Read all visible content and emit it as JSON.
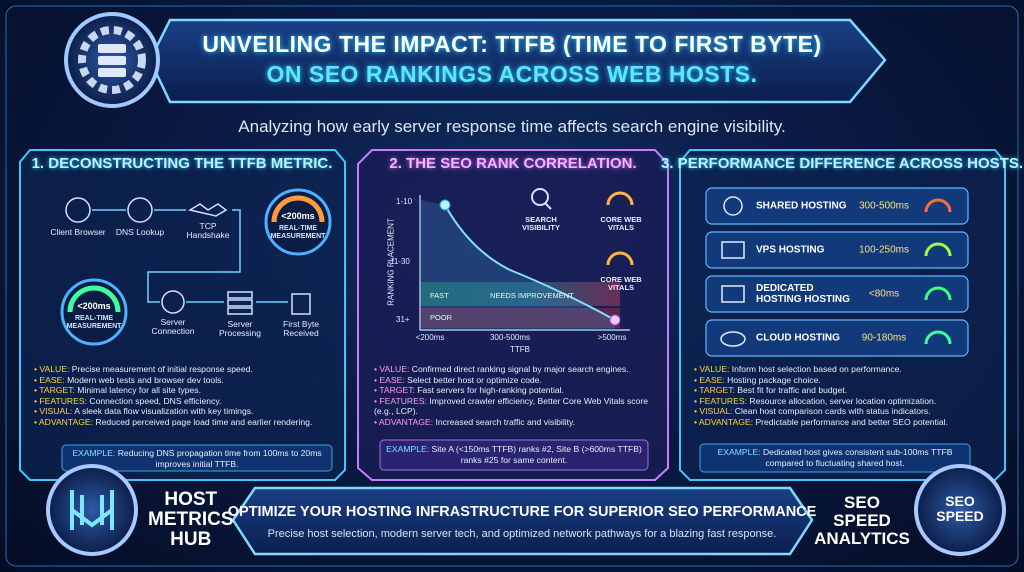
{
  "header": {
    "title_lines": [
      "UNVEILING THE IMPACT: TTFB (TIME TO FIRST BYTE)",
      "ON SEO RANKINGS ACROSS WEB HOSTS."
    ],
    "subtitle": "Analyzing how early server response time affects search engine visibility."
  },
  "panels": [
    {
      "title": "1. DECONSTRUCTING THE TTFB METRIC.",
      "flow": [
        "Client Browser",
        "DNS Lookup",
        "TCP Handshake",
        "Server Connection",
        "Server Processing",
        "First Byte Received"
      ],
      "gauges": [
        {
          "value": "<200ms",
          "label": "REAL-TIME MEASUREMENT"
        },
        {
          "value": "<200ms",
          "label": "REAL-TIME MEASUREMENT"
        }
      ],
      "bullets": [
        {
          "label": "VALUE:",
          "text": "Precise measurement of initial response speed."
        },
        {
          "label": "EASE:",
          "text": "Modern web tests and browser dev tools."
        },
        {
          "label": "TARGET:",
          "text": "Minimal latency for all site types."
        },
        {
          "label": "FEATURES:",
          "text": "Connection speed, DNS efficiency."
        },
        {
          "label": "VISUAL:",
          "text": "A sleek data flow visualization with key timings."
        },
        {
          "label": "ADVANTAGE:",
          "text": "Reduced perceived page load time and earlier rendering."
        }
      ],
      "example": {
        "label": "EXAMPLE:",
        "text": "Reducing DNS propagation time from 100ms to 20ms improves initial TTFB."
      }
    },
    {
      "title": "2. THE SEO RANK CORRELATION.",
      "chart": {
        "y_label": "RANKING PLACEMENT",
        "y_labels": [
          "1-10",
          "11-30",
          "31+"
        ],
        "x_label": "TTFB",
        "x_labels": [
          "<200ms",
          "300-500ms",
          ">500ms"
        ],
        "zones": [
          "FAST",
          "NEEDS IMPROVEMENT",
          "POOR"
        ],
        "icons": [
          "SEARCH VISIBILITY",
          "CORE WEB VITALS",
          "CORE WEB VITALS"
        ]
      },
      "bullets": [
        {
          "label": "VALUE:",
          "text": "Confirmed direct ranking signal by major search engines."
        },
        {
          "label": "EASE:",
          "text": "Select better host or optimize code."
        },
        {
          "label": "TARGET:",
          "text": "Fast servers for high-ranking potential."
        },
        {
          "label": "FEATURES:",
          "text": "Improved crawler efficiency, Better Core Web Vitals score (e.g., LCP)."
        },
        {
          "label": "ADVANTAGE:",
          "text": "Increased search traffic and visibility."
        }
      ],
      "example": {
        "label": "EXAMPLE:",
        "text": "Site A (<150ms TTFB) ranks #2, Site B (>600ms TTFB) ranks #25 for same content."
      }
    },
    {
      "title": "3. PERFORMANCE DIFFERENCE ACROSS HOSTS.",
      "hosts": [
        {
          "name": "SHARED HOSTING",
          "time": "300-500ms"
        },
        {
          "name": "VPS HOSTING",
          "time": "100-250ms"
        },
        {
          "name": "DEDICATED HOSTING HOSTING",
          "time": "<80ms"
        },
        {
          "name": "CLOUD HOSTING",
          "time": "90-180ms"
        }
      ],
      "bullets": [
        {
          "label": "VALUE:",
          "text": "Inform host selection based on performance."
        },
        {
          "label": "EASE:",
          "text": "Hosting package choice."
        },
        {
          "label": "TARGET:",
          "text": "Best fit for traffic and budget."
        },
        {
          "label": "FEATURES:",
          "text": "Resource allocation, server location optimization."
        },
        {
          "label": "VISUAL:",
          "text": "Clean host comparison cards with status indicators."
        },
        {
          "label": "ADVANTAGE:",
          "text": "Predictable performance and better SEO potential."
        }
      ],
      "example": {
        "label": "EXAMPLE:",
        "text": "Dedicated host gives consistent sub-100ms TTFB compared to fluctuating shared host."
      }
    }
  ],
  "footer": {
    "brand": [
      "HOST",
      "METRICS",
      "HUB"
    ],
    "banner_title": "OPTIMIZE YOUR HOSTING INFRASTRUCTURE FOR SUPERIOR SEO PERFORMANCE",
    "banner_subtitle": "Precise host selection, modern server tech, and optimized network pathways for a blazing fast response.",
    "side_text": [
      "SEO",
      "SPEED",
      "ANALYTICS"
    ],
    "badge": [
      "SEO",
      "SPEED"
    ]
  }
}
